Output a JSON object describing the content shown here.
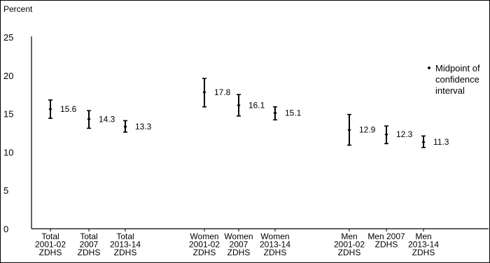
{
  "chart_data": {
    "type": "scatter",
    "ylabel": "Percent",
    "ylim": [
      0,
      25
    ],
    "yticks": [
      "0",
      "5",
      "10",
      "15",
      "20",
      "25"
    ],
    "grid": false,
    "legend_position": "right",
    "legend": "Midpoint of confidence interval",
    "legend_lines": [
      "Midpoint of",
      "confidence",
      "interval"
    ],
    "categories": [
      {
        "lines": [
          "Total",
          "2001-02",
          "ZDHS"
        ]
      },
      {
        "lines": [
          "Total",
          "2007",
          "ZDHS"
        ]
      },
      {
        "lines": [
          "Total",
          "2013-14",
          "ZDHS"
        ]
      },
      {
        "lines": [
          "Women",
          "2001-02",
          "ZDHS"
        ]
      },
      {
        "lines": [
          "Women",
          "2007",
          "ZDHS"
        ]
      },
      {
        "lines": [
          "Women",
          "2013-14",
          "ZDHS"
        ]
      },
      {
        "lines": [
          "Men",
          "2001-02",
          "ZDHS"
        ]
      },
      {
        "lines": [
          "Men 2007",
          "ZDHS"
        ]
      },
      {
        "lines": [
          "Men",
          "2013-14",
          "ZDHS"
        ]
      }
    ],
    "series": [
      {
        "points": [
          {
            "category": 0,
            "value": 15.6,
            "low": 14.4,
            "high": 16.8,
            "label": "15.6"
          },
          {
            "category": 1,
            "value": 14.3,
            "low": 13.1,
            "high": 15.4,
            "label": "14.3"
          },
          {
            "category": 2,
            "value": 13.3,
            "low": 12.6,
            "high": 14.1,
            "label": "13.3"
          },
          {
            "category": 3,
            "value": 17.8,
            "low": 15.9,
            "high": 19.6,
            "label": "17.8"
          },
          {
            "category": 4,
            "value": 16.1,
            "low": 14.7,
            "high": 17.5,
            "label": "16.1"
          },
          {
            "category": 5,
            "value": 15.1,
            "low": 14.2,
            "high": 15.9,
            "label": "15.1"
          },
          {
            "category": 6,
            "value": 12.9,
            "low": 10.9,
            "high": 14.9,
            "label": "12.9"
          },
          {
            "category": 7,
            "value": 12.3,
            "low": 11.1,
            "high": 13.4,
            "label": "12.3"
          },
          {
            "category": 8,
            "value": 11.3,
            "low": 10.6,
            "high": 12.1,
            "label": "11.3"
          }
        ]
      }
    ]
  }
}
